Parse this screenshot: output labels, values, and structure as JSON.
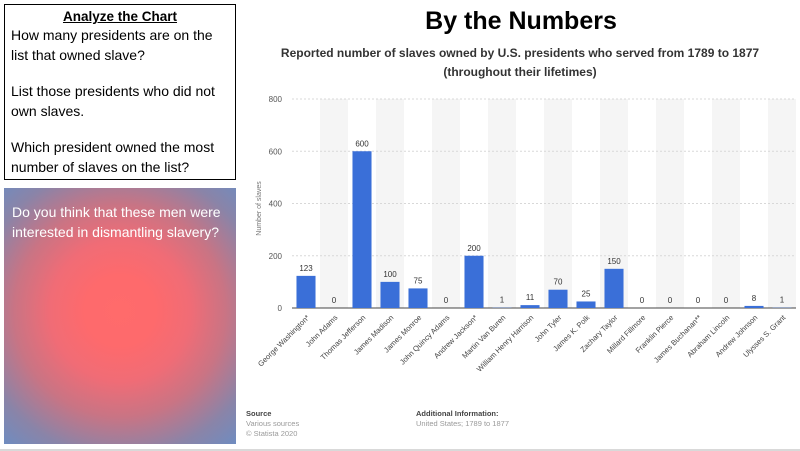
{
  "question_box": {
    "title": "Analyze the Chart",
    "q1": "How many presidents are on the list that owned slave?",
    "q2": " List those presidents who did not own slaves.",
    "q3": "Which president owned the most number of slaves on the list?"
  },
  "prompt_box": {
    "text": "Do you think that these men were interested in dismantling slavery?"
  },
  "slide_title": "By the Numbers",
  "chart_data": {
    "type": "bar",
    "title_line1": "Reported number of slaves owned by U.S. presidents who served from 1789 to 1877",
    "title_line2": "(throughout their lifetimes)",
    "ylabel": "Number of slaves",
    "xlabel": "",
    "ylim": [
      0,
      800
    ],
    "yticks": [
      0,
      200,
      400,
      600,
      800
    ],
    "grid": true,
    "bar_color": "#3a6fd8",
    "categories": [
      "George Washington*",
      "John Adams",
      "Thomas Jefferson",
      "James Madison",
      "James Monroe",
      "John Quincy Adams",
      "Andrew Jackson*",
      "Martin Van Buren",
      "William Henry Harrison",
      "John Tyler",
      "James K. Polk",
      "Zachary Taylor",
      "Millard Fillmore",
      "Franklin Pierce",
      "James Buchanan**",
      "Abraham Lincoln",
      "Andrew Johnson",
      "Ulysses S. Grant"
    ],
    "values": [
      123,
      0,
      600,
      100,
      75,
      0,
      200,
      1,
      11,
      70,
      25,
      150,
      0,
      0,
      0,
      0,
      8,
      1
    ],
    "data_labels": [
      "123",
      "0",
      "600",
      "100",
      "75",
      "0",
      "200",
      "1",
      "11",
      "70",
      "25",
      "150",
      "0",
      "0",
      "0",
      "0",
      "8",
      "1"
    ]
  },
  "chart_footer": {
    "source_heading": "Source",
    "source_line1": "Various sources",
    "source_line2": "© Statista 2020",
    "info_heading": "Additional Information:",
    "info_line1": "United States; 1789 to 1877"
  }
}
